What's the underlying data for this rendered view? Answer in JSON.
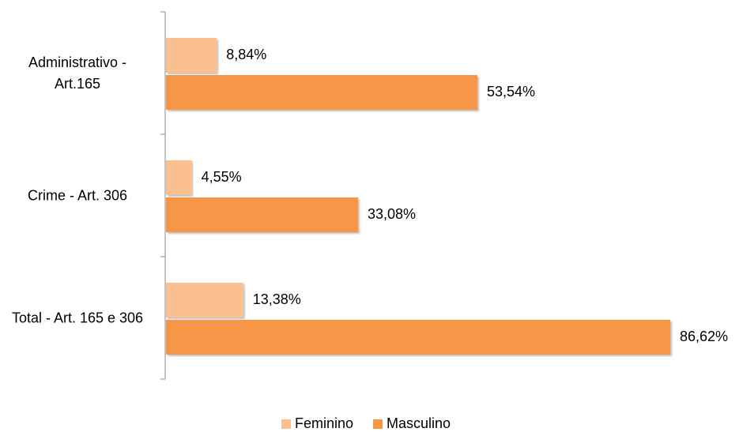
{
  "chart_data": {
    "type": "bar",
    "orientation": "horizontal",
    "categories": [
      "Administrativo - Art.165",
      "Crime - Art. 306",
      "Total - Art. 165 e 306"
    ],
    "series": [
      {
        "name": "Feminino",
        "color": "#fac090",
        "values": [
          8.84,
          4.55,
          13.38
        ],
        "value_labels": [
          "8,84%",
          "4,55%",
          "13,38%"
        ]
      },
      {
        "name": "Masculino",
        "color": "#f79646",
        "values": [
          53.54,
          33.08,
          86.62
        ],
        "value_labels": [
          "53,54%",
          "33,08%",
          "86,62%"
        ]
      }
    ],
    "legend": "bottom"
  }
}
